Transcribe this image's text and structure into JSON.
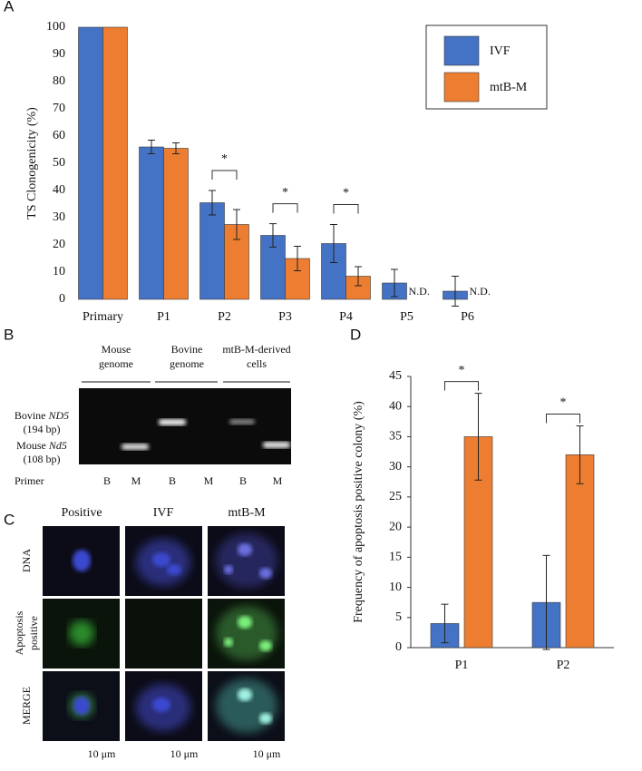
{
  "chart_data": [
    {
      "type": "bar",
      "label": "A",
      "y_label": "TS Clonogenicity (%)",
      "categories": [
        "Primary",
        "P1",
        "P2",
        "P3",
        "P4",
        "P5",
        "P6"
      ],
      "series": [
        {
          "name": "IVF",
          "color": "#4472c4",
          "values": [
            100,
            56,
            35.5,
            23.5,
            20.5,
            6,
            3
          ],
          "errors": [
            null,
            2.5,
            4.5,
            4.3,
            7,
            5,
            5.5
          ]
        },
        {
          "name": "mtB-M",
          "color": "#ed7d31",
          "values": [
            100,
            55.5,
            27.5,
            15,
            8.5,
            null,
            null
          ],
          "errors": [
            null,
            2,
            5.5,
            4.5,
            3.5,
            null,
            null
          ],
          "value_labels": [
            null,
            null,
            null,
            null,
            null,
            "N.D.",
            "N.D."
          ]
        }
      ],
      "significance": [
        null,
        null,
        "*",
        "*",
        "*",
        null,
        null
      ],
      "ylim": [
        0,
        100
      ],
      "yticks": [
        0,
        10,
        20,
        30,
        40,
        50,
        60,
        70,
        80,
        90,
        100
      ],
      "legend": "top-right",
      "frame": false
    },
    {
      "type": "bar",
      "label": "D",
      "y_label": "Frequency of apoptosis positive colony (%)",
      "categories": [
        "P1",
        "P2"
      ],
      "series": [
        {
          "color": "#4472c4",
          "values": [
            4,
            7.5
          ],
          "errors": [
            3.2,
            7.8
          ]
        },
        {
          "color": "#ed7d31",
          "values": [
            35,
            32
          ],
          "errors": [
            7.2,
            4.8
          ]
        }
      ],
      "significance": [
        "*",
        "*"
      ],
      "ylim": [
        0,
        45
      ],
      "yticks": [
        0,
        5,
        10,
        15,
        20,
        25,
        30,
        35,
        40,
        45
      ],
      "frame": true
    }
  ],
  "gel": {
    "label": "B",
    "groups": [
      [
        "Mouse",
        "genome"
      ],
      [
        "Bovine",
        "genome"
      ],
      [
        "mtB-M-derived",
        "cells"
      ]
    ],
    "band_labels": [
      {
        "name": "Bovine",
        "gene": "ND5",
        "size": "(194 bp)"
      },
      {
        "name": "Mouse",
        "gene": "Nd5",
        "size": "(108 bp)"
      }
    ],
    "primer_label": "Primer",
    "primers": [
      "B",
      "M",
      "B",
      "M",
      "B",
      "M"
    ]
  },
  "microscopy": {
    "label": "C",
    "columns": [
      "Positive",
      "IVF",
      "mtB-M"
    ],
    "rows": [
      [
        "DNA"
      ],
      [
        "Apoptosis",
        "positive"
      ],
      [
        "MERGE"
      ]
    ],
    "scale_bars": [
      "10 μm",
      "10 μm",
      "10 μm"
    ]
  }
}
